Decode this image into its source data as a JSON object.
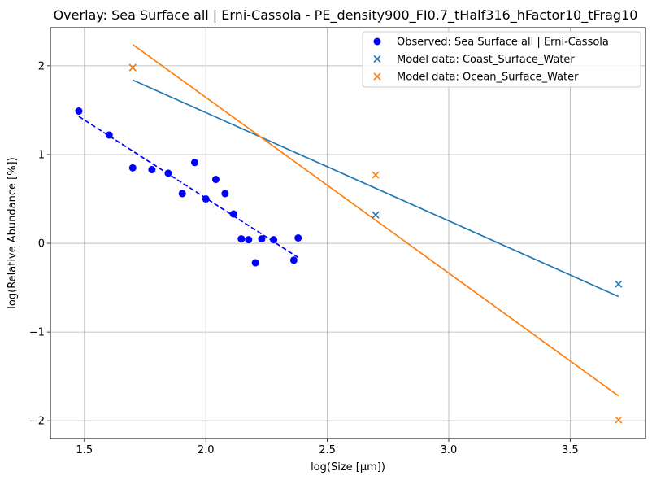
{
  "chart_data": {
    "type": "scatter",
    "title": "Overlay: Sea Surface all | Erni-Cassola - PE_density900_FI0.7_tHalf316_hFactor10_tFrag10",
    "xlabel": "log(Size [µm])",
    "ylabel": "log(Relative Abundance [%])",
    "xlim": [
      1.36,
      3.81
    ],
    "ylim": [
      -2.2,
      2.43
    ],
    "xticks": [
      1.5,
      2.0,
      2.5,
      3.0,
      3.5
    ],
    "xtick_labels": [
      "1.5",
      "2.0",
      "2.5",
      "3.0",
      "3.5"
    ],
    "yticks": [
      -2,
      -1,
      0,
      1,
      2
    ],
    "ytick_labels": [
      "−2",
      "−1",
      "0",
      "1",
      "2"
    ],
    "grid": true,
    "legend_position": "top-right",
    "series": [
      {
        "name": "Observed: Sea Surface all | Erni-Cassola",
        "kind": "scatter",
        "marker": "circle",
        "color": "#0000ff",
        "points": [
          [
            1.477,
            1.49
          ],
          [
            1.602,
            1.22
          ],
          [
            1.699,
            0.85
          ],
          [
            1.778,
            0.83
          ],
          [
            1.845,
            0.79
          ],
          [
            1.903,
            0.56
          ],
          [
            1.954,
            0.91
          ],
          [
            2.0,
            0.5
          ],
          [
            2.041,
            0.72
          ],
          [
            2.079,
            0.56
          ],
          [
            2.114,
            0.33
          ],
          [
            2.146,
            0.05
          ],
          [
            2.176,
            0.04
          ],
          [
            2.204,
            -0.22
          ],
          [
            2.23,
            0.05
          ],
          [
            2.279,
            0.04
          ],
          [
            2.362,
            -0.19
          ],
          [
            2.38,
            0.06
          ]
        ]
      },
      {
        "name": "",
        "kind": "fit-line",
        "style": "dashed",
        "color": "#0000ff",
        "points": [
          [
            1.477,
            1.43
          ],
          [
            2.38,
            -0.16
          ]
        ]
      },
      {
        "name": "Model data: Coast_Surface_Water",
        "kind": "scatter",
        "marker": "x",
        "color": "#1f77b4",
        "points": [
          [
            1.699,
            1.98
          ],
          [
            2.699,
            0.32
          ],
          [
            3.699,
            -0.46
          ]
        ]
      },
      {
        "name": "",
        "kind": "fit-line",
        "style": "solid",
        "color": "#1f77b4",
        "points": [
          [
            1.699,
            1.84
          ],
          [
            3.699,
            -0.6
          ]
        ]
      },
      {
        "name": "Model data: Ocean_Surface_Water",
        "kind": "scatter",
        "marker": "x",
        "color": "#ff7f0e",
        "points": [
          [
            1.699,
            1.98
          ],
          [
            2.699,
            0.77
          ],
          [
            3.699,
            -1.99
          ]
        ]
      },
      {
        "name": "",
        "kind": "fit-line",
        "style": "solid",
        "color": "#ff7f0e",
        "points": [
          [
            1.699,
            2.24
          ],
          [
            3.699,
            -1.72
          ]
        ]
      }
    ]
  }
}
